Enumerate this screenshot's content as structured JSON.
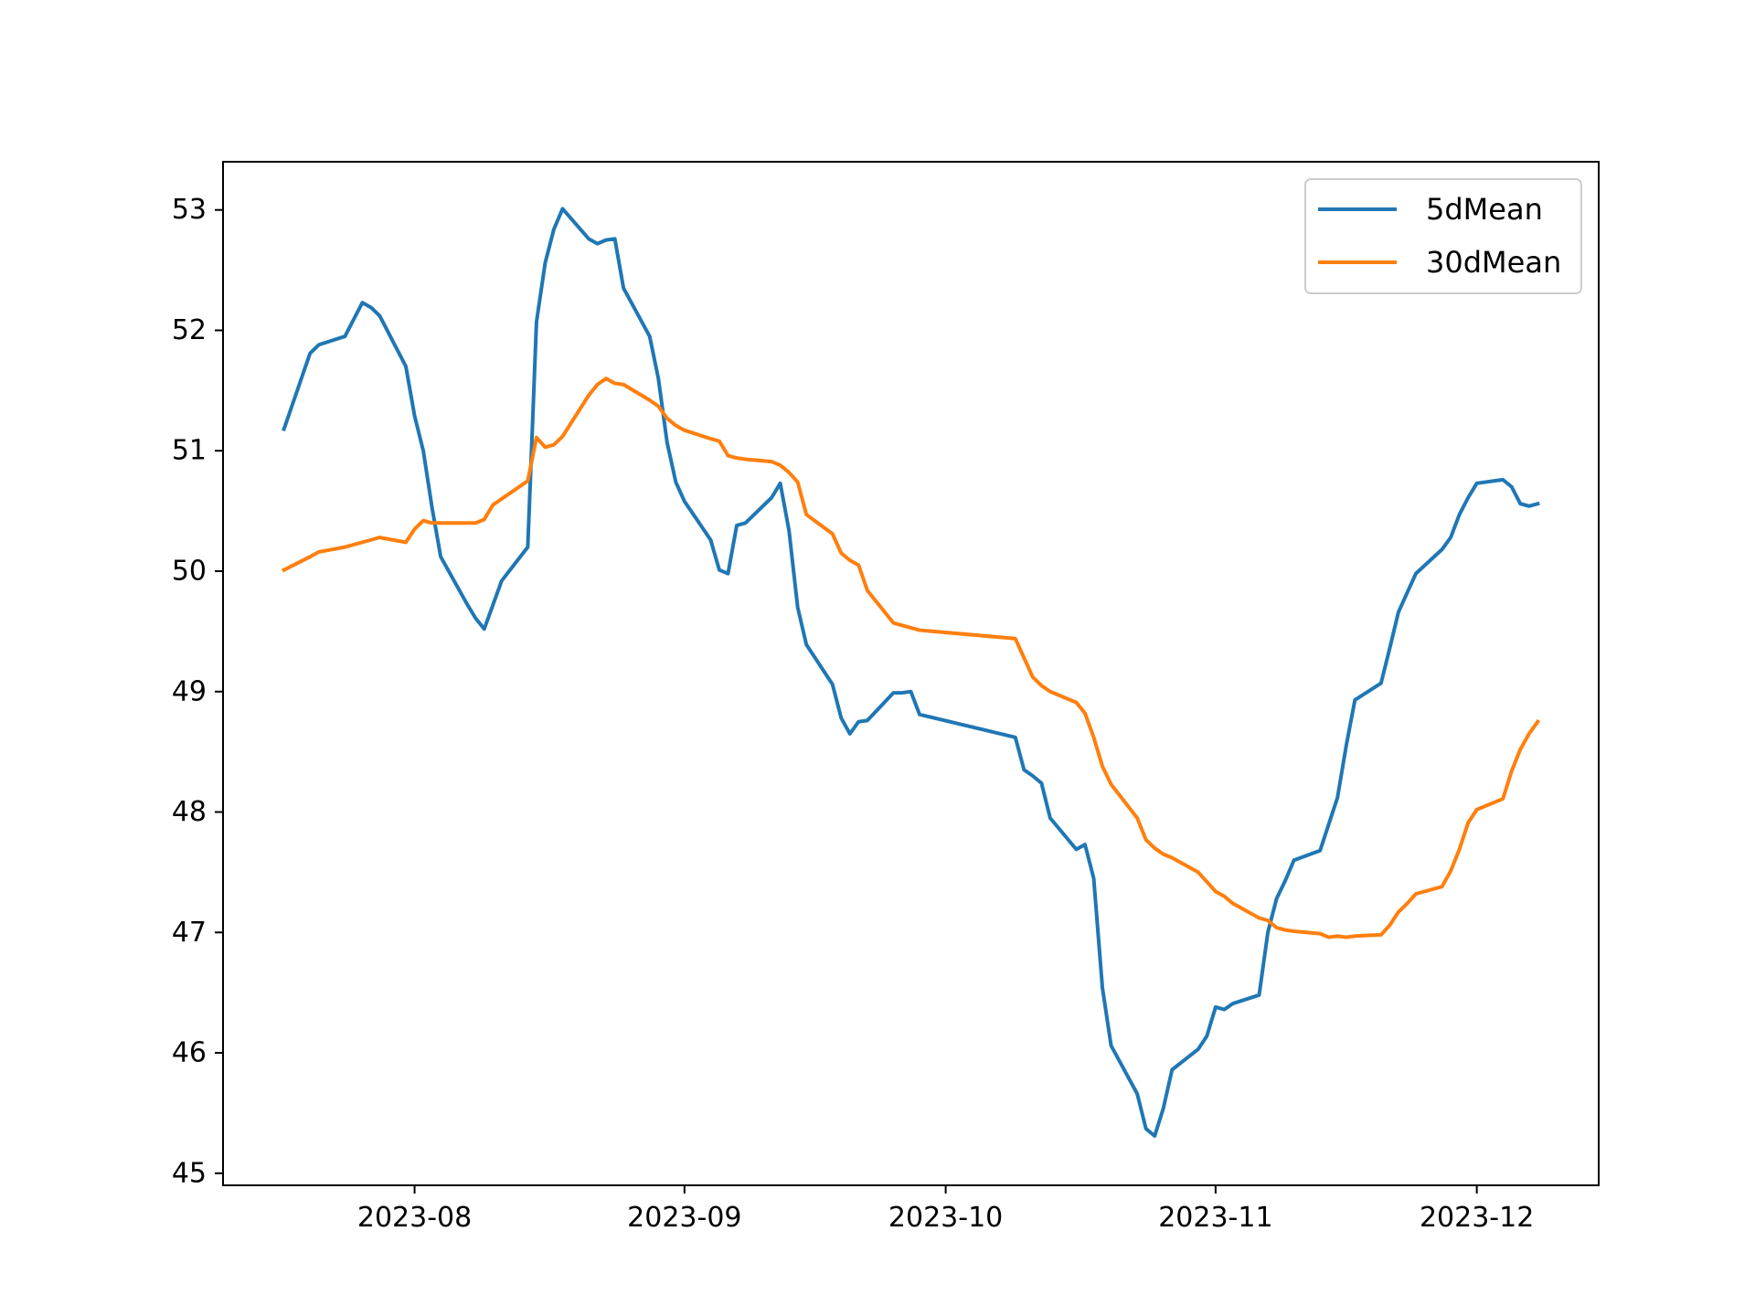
{
  "chart_data": {
    "type": "line",
    "title": "",
    "xlabel": "",
    "ylabel": "",
    "ylim": [
      44.9,
      53.4
    ],
    "xlim": [
      "2023-07-10",
      "2023-12-15"
    ],
    "grid": false,
    "legend_position": "top-right",
    "y_ticks": [
      45,
      46,
      47,
      48,
      49,
      50,
      51,
      52,
      53
    ],
    "y_tick_labels": [
      "45",
      "46",
      "47",
      "48",
      "49",
      "50",
      "51",
      "52",
      "53"
    ],
    "x_ticks": [
      "2023-08-01",
      "2023-09-01",
      "2023-10-01",
      "2023-11-01",
      "2023-12-01"
    ],
    "x_tick_labels": [
      "2023-08",
      "2023-09",
      "2023-10",
      "2023-11",
      "2023-12"
    ],
    "series": [
      {
        "name": "5dMean",
        "color": "#1f77b4",
        "x": [
          "2023-07-17",
          "2023-07-20",
          "2023-07-21",
          "2023-07-24",
          "2023-07-25",
          "2023-07-26",
          "2023-07-27",
          "2023-07-28",
          "2023-07-31",
          "2023-08-01",
          "2023-08-02",
          "2023-08-03",
          "2023-08-04",
          "2023-08-07",
          "2023-08-08",
          "2023-08-09",
          "2023-08-10",
          "2023-08-11",
          "2023-08-14",
          "2023-08-15",
          "2023-08-16",
          "2023-08-17",
          "2023-08-18",
          "2023-08-21",
          "2023-08-22",
          "2023-08-23",
          "2023-08-24",
          "2023-08-25",
          "2023-08-28",
          "2023-08-29",
          "2023-08-30",
          "2023-08-31",
          "2023-09-01",
          "2023-09-04",
          "2023-09-05",
          "2023-09-06",
          "2023-09-07",
          "2023-09-08",
          "2023-09-11",
          "2023-09-12",
          "2023-09-13",
          "2023-09-14",
          "2023-09-15",
          "2023-09-18",
          "2023-09-19",
          "2023-09-20",
          "2023-09-21",
          "2023-09-22",
          "2023-09-25",
          "2023-09-26",
          "2023-09-27",
          "2023-09-28",
          "2023-10-09",
          "2023-10-10",
          "2023-10-11",
          "2023-10-12",
          "2023-10-13",
          "2023-10-16",
          "2023-10-17",
          "2023-10-18",
          "2023-10-19",
          "2023-10-20",
          "2023-10-23",
          "2023-10-24",
          "2023-10-25",
          "2023-10-26",
          "2023-10-27",
          "2023-10-30",
          "2023-10-31",
          "2023-11-01",
          "2023-11-02",
          "2023-11-03",
          "2023-11-06",
          "2023-11-07",
          "2023-11-08",
          "2023-11-09",
          "2023-11-10",
          "2023-11-13",
          "2023-11-14",
          "2023-11-15",
          "2023-11-16",
          "2023-11-17",
          "2023-11-20",
          "2023-11-21",
          "2023-11-22",
          "2023-11-23",
          "2023-11-24",
          "2023-11-27",
          "2023-11-28",
          "2023-11-29",
          "2023-11-30",
          "2023-12-01",
          "2023-12-04",
          "2023-12-05",
          "2023-12-06",
          "2023-12-07",
          "2023-12-08"
        ],
        "values": [
          51.18,
          51.81,
          51.88,
          51.95,
          52.09,
          52.23,
          52.19,
          52.12,
          51.7,
          51.29,
          51.0,
          50.53,
          50.12,
          49.73,
          49.61,
          49.52,
          49.72,
          49.92,
          50.2,
          52.07,
          52.56,
          52.84,
          53.01,
          52.76,
          52.72,
          52.75,
          52.76,
          52.35,
          51.95,
          51.6,
          51.07,
          50.74,
          50.58,
          50.26,
          50.01,
          49.98,
          50.38,
          50.4,
          50.61,
          50.73,
          50.34,
          49.7,
          49.39,
          49.06,
          48.78,
          48.65,
          48.75,
          48.76,
          48.99,
          48.99,
          49.0,
          48.81,
          48.62,
          48.35,
          48.3,
          48.24,
          47.95,
          47.69,
          47.73,
          47.45,
          46.54,
          46.06,
          45.66,
          45.37,
          45.31,
          45.54,
          45.86,
          46.03,
          46.14,
          46.38,
          46.36,
          46.41,
          46.48,
          47.0,
          47.28,
          47.43,
          47.6,
          47.68,
          47.9,
          48.12,
          48.55,
          48.93,
          49.07,
          49.36,
          49.66,
          49.82,
          49.98,
          50.18,
          50.28,
          50.47,
          50.61,
          50.73,
          50.76,
          50.7,
          50.56,
          50.54,
          50.56
        ]
      },
      {
        "name": "30dMean",
        "color": "#ff7f0e",
        "x": [
          "2023-07-17",
          "2023-07-20",
          "2023-07-21",
          "2023-07-24",
          "2023-07-25",
          "2023-07-26",
          "2023-07-27",
          "2023-07-28",
          "2023-07-31",
          "2023-08-01",
          "2023-08-02",
          "2023-08-03",
          "2023-08-04",
          "2023-08-07",
          "2023-08-08",
          "2023-08-09",
          "2023-08-10",
          "2023-08-11",
          "2023-08-14",
          "2023-08-15",
          "2023-08-16",
          "2023-08-17",
          "2023-08-18",
          "2023-08-21",
          "2023-08-22",
          "2023-08-23",
          "2023-08-24",
          "2023-08-25",
          "2023-08-28",
          "2023-08-29",
          "2023-08-30",
          "2023-08-31",
          "2023-09-01",
          "2023-09-04",
          "2023-09-05",
          "2023-09-06",
          "2023-09-07",
          "2023-09-08",
          "2023-09-11",
          "2023-09-12",
          "2023-09-13",
          "2023-09-14",
          "2023-09-15",
          "2023-09-18",
          "2023-09-19",
          "2023-09-20",
          "2023-09-21",
          "2023-09-22",
          "2023-09-25",
          "2023-09-26",
          "2023-09-27",
          "2023-09-28",
          "2023-10-09",
          "2023-10-10",
          "2023-10-11",
          "2023-10-12",
          "2023-10-13",
          "2023-10-16",
          "2023-10-17",
          "2023-10-18",
          "2023-10-19",
          "2023-10-20",
          "2023-10-23",
          "2023-10-24",
          "2023-10-25",
          "2023-10-26",
          "2023-10-27",
          "2023-10-30",
          "2023-10-31",
          "2023-11-01",
          "2023-11-02",
          "2023-11-03",
          "2023-11-06",
          "2023-11-07",
          "2023-11-08",
          "2023-11-09",
          "2023-11-10",
          "2023-11-13",
          "2023-11-14",
          "2023-11-15",
          "2023-11-16",
          "2023-11-17",
          "2023-11-20",
          "2023-11-21",
          "2023-11-22",
          "2023-11-23",
          "2023-11-24",
          "2023-11-27",
          "2023-11-28",
          "2023-11-29",
          "2023-11-30",
          "2023-12-01",
          "2023-12-04",
          "2023-12-05",
          "2023-12-06",
          "2023-12-07",
          "2023-12-08"
        ],
        "values": [
          50.01,
          50.12,
          50.16,
          50.2,
          50.22,
          50.24,
          50.26,
          50.28,
          50.24,
          50.35,
          50.42,
          50.4,
          50.4,
          50.4,
          50.4,
          50.43,
          50.55,
          50.6,
          50.75,
          51.11,
          51.03,
          51.05,
          51.12,
          51.46,
          51.55,
          51.6,
          51.56,
          51.55,
          51.42,
          51.37,
          51.27,
          51.21,
          51.17,
          51.1,
          51.08,
          50.96,
          50.94,
          50.93,
          50.91,
          50.88,
          50.82,
          50.74,
          50.47,
          50.31,
          50.15,
          50.09,
          50.05,
          49.84,
          49.57,
          49.55,
          49.53,
          49.51,
          49.44,
          49.28,
          49.12,
          49.05,
          49.0,
          48.91,
          48.82,
          48.62,
          48.38,
          48.23,
          47.95,
          47.77,
          47.7,
          47.65,
          47.62,
          47.5,
          47.42,
          47.34,
          47.3,
          47.24,
          47.12,
          47.1,
          47.04,
          47.02,
          47.01,
          46.99,
          46.96,
          46.97,
          46.96,
          46.97,
          46.98,
          47.06,
          47.17,
          47.24,
          47.32,
          47.38,
          47.51,
          47.69,
          47.91,
          48.02,
          48.11,
          48.34,
          48.52,
          48.65,
          48.75
        ]
      }
    ]
  }
}
